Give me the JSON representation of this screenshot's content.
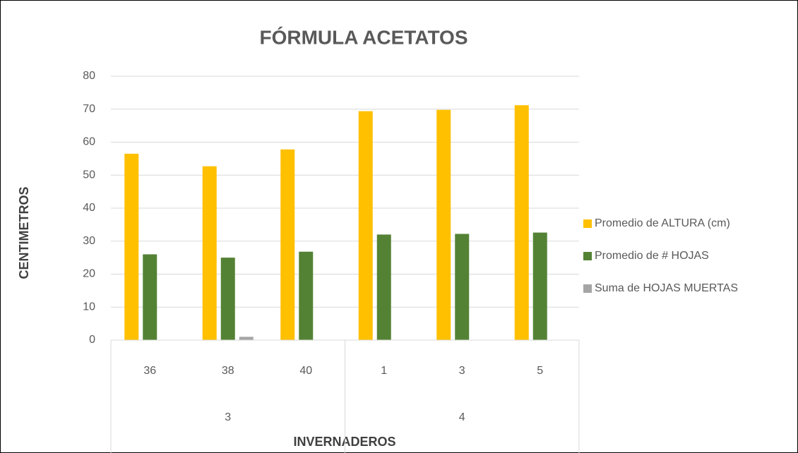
{
  "chart_data": {
    "type": "bar",
    "title": "FÓRMULA ACETATOS",
    "ylabel": "CENTIMETROS",
    "xlabel": "INVERNADEROS",
    "groups": [
      {
        "label": "3",
        "categories": [
          "36",
          "38",
          "40"
        ]
      },
      {
        "label": "4",
        "categories": [
          "1",
          "3",
          "5"
        ]
      }
    ],
    "series": [
      {
        "name": "Promedio de ALTURA (cm)",
        "color": "#ffc000",
        "values": [
          56.5,
          52.7,
          57.8,
          69.4,
          69.8,
          71.2
        ]
      },
      {
        "name": "Promedio de # HOJAS",
        "color": "#548235",
        "values": [
          26,
          25,
          26.8,
          32,
          32.2,
          32.6
        ]
      },
      {
        "name": "Suma de HOJAS MUERTAS",
        "color": "#a5a5a5",
        "values": [
          0,
          1,
          0,
          0,
          0,
          0
        ]
      }
    ],
    "ylim": [
      0,
      80
    ],
    "yticks": [
      0,
      10,
      20,
      30,
      40,
      50,
      60,
      70,
      80
    ],
    "grid": true,
    "legend": "right"
  }
}
